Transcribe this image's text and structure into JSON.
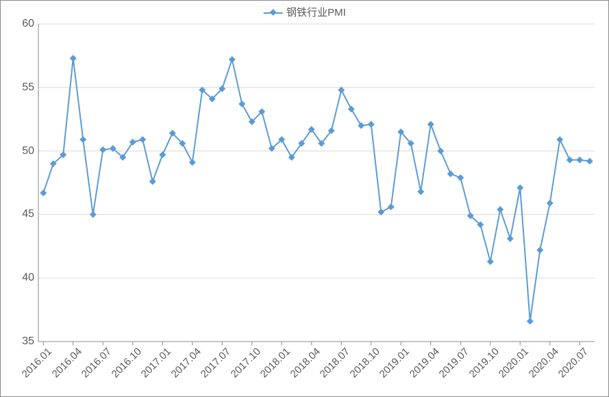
{
  "pmi_chart": {
    "type": "line",
    "series_name": "钢铁行业PMI",
    "line_color": "#5b9bd5",
    "marker_color": "#5b9bd5",
    "marker_shape": "diamond",
    "marker_size": 5,
    "line_width": 2,
    "grid_color": "#d9d9d9",
    "grid_width": 1,
    "axis_color": "#888888",
    "background_color": "#ffffff",
    "tick_label_color": "#595959",
    "tick_font_size": 16,
    "legend_font_size": 15,
    "ylim": [
      35,
      60
    ],
    "ytick_step": 5,
    "y_ticks": [
      35,
      40,
      45,
      50,
      55,
      60
    ],
    "x_labels_shown": [
      "2016.01",
      "2016.04",
      "2016.07",
      "2016.10",
      "2017.01",
      "2017.04",
      "2017.07",
      "2017.10",
      "2018.01",
      "2018.04",
      "2018.07",
      "2018.10",
      "2019.01",
      "2019.04",
      "2019.07",
      "2019.10",
      "2020.01",
      "2020.04",
      "2020.07"
    ],
    "x_label_interval": 3,
    "values": [
      46.7,
      49.0,
      49.7,
      57.3,
      50.9,
      45.0,
      50.1,
      50.2,
      49.5,
      50.7,
      50.9,
      47.6,
      49.7,
      51.4,
      50.6,
      49.1,
      54.8,
      54.1,
      54.9,
      57.2,
      53.7,
      52.3,
      53.1,
      50.2,
      50.9,
      49.5,
      50.6,
      51.7,
      50.6,
      51.6,
      54.8,
      53.3,
      52.0,
      52.1,
      45.2,
      45.6,
      51.5,
      50.6,
      46.8,
      52.1,
      50.0,
      48.2,
      47.9,
      44.9,
      44.2,
      41.3,
      45.4,
      43.1,
      47.1,
      36.6,
      42.2,
      45.9,
      50.9,
      49.3,
      49.3,
      49.2
    ]
  }
}
